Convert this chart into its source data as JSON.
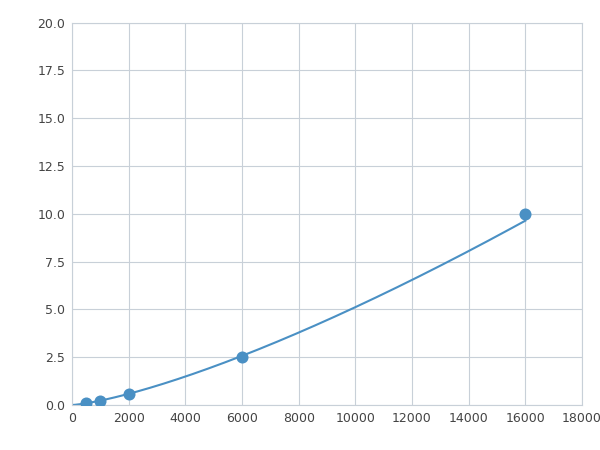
{
  "x": [
    0,
    500,
    1000,
    2000,
    6000,
    16000
  ],
  "y": [
    0.05,
    0.1,
    0.2,
    0.6,
    2.5,
    10.0
  ],
  "line_color": "#4a90c4",
  "marker_color": "#4a90c4",
  "marker_size": 5,
  "xlim": [
    0,
    18000
  ],
  "ylim": [
    0,
    20
  ],
  "xticks": [
    0,
    2000,
    4000,
    6000,
    8000,
    10000,
    12000,
    14000,
    16000,
    18000
  ],
  "yticks": [
    0.0,
    2.5,
    5.0,
    7.5,
    10.0,
    12.5,
    15.0,
    17.5,
    20.0
  ],
  "grid_color": "#c8d0d8",
  "background_color": "#ffffff",
  "spine_color": "#c8d0d8"
}
